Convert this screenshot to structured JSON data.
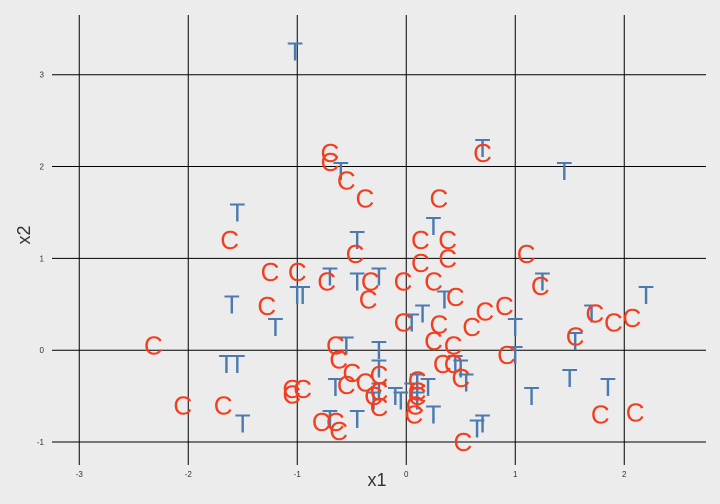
{
  "chart_data": {
    "type": "scatter",
    "title": "",
    "xlabel": "x1",
    "ylabel": "x2",
    "xlim": [
      -3.25,
      2.75
    ],
    "ylim": [
      -1.25,
      3.65
    ],
    "xticks": [
      -3,
      -2,
      -1,
      0,
      1,
      2
    ],
    "yticks": [
      -1,
      0,
      1,
      2,
      3
    ],
    "xtick_labels": [
      "-3",
      "-2",
      "-1",
      "0",
      "1",
      "2"
    ],
    "ytick_labels": [
      "-1",
      "0",
      "1",
      "2",
      "3"
    ],
    "grid": true,
    "colors": {
      "T": "#4a7ab0",
      "C": "#f23d1f",
      "background": "#ececec",
      "grid": "#000000"
    },
    "series": [
      {
        "name": "T",
        "points": [
          [
            -1.02,
            3.25
          ],
          [
            0.7,
            2.2
          ],
          [
            1.45,
            1.95
          ],
          [
            -0.6,
            1.95
          ],
          [
            -1.55,
            1.5
          ],
          [
            0.25,
            1.35
          ],
          [
            -0.45,
            1.2
          ],
          [
            -1.6,
            0.5
          ],
          [
            -1.0,
            0.6
          ],
          [
            -0.7,
            0.8
          ],
          [
            -0.25,
            0.8
          ],
          [
            -0.45,
            0.75
          ],
          [
            0.35,
            0.55
          ],
          [
            -0.95,
            0.6
          ],
          [
            2.2,
            0.6
          ],
          [
            0.05,
            0.3
          ],
          [
            1.25,
            0.75
          ],
          [
            0.15,
            0.4
          ],
          [
            -1.2,
            0.25
          ],
          [
            1.7,
            0.4
          ],
          [
            1.0,
            0.25
          ],
          [
            -0.55,
            0.05
          ],
          [
            -0.25,
            0.0
          ],
          [
            1.55,
            0.1
          ],
          [
            -1.65,
            -0.15
          ],
          [
            -1.55,
            -0.15
          ],
          [
            -0.25,
            -0.2
          ],
          [
            1.0,
            -0.05
          ],
          [
            0.45,
            -0.15
          ],
          [
            0.5,
            -0.2
          ],
          [
            1.5,
            -0.3
          ],
          [
            -0.65,
            -0.4
          ],
          [
            -0.25,
            -0.45
          ],
          [
            0.1,
            -0.35
          ],
          [
            0.55,
            -0.35
          ],
          [
            1.85,
            -0.4
          ],
          [
            -0.1,
            -0.5
          ],
          [
            0.2,
            -0.4
          ],
          [
            1.15,
            -0.5
          ],
          [
            0.1,
            -0.55
          ],
          [
            -0.05,
            -0.55
          ],
          [
            -0.7,
            -0.75
          ],
          [
            -0.45,
            -0.75
          ],
          [
            0.25,
            -0.7
          ],
          [
            0.7,
            -0.8
          ],
          [
            -1.5,
            -0.8
          ],
          [
            0.65,
            -0.85
          ],
          [
            0.05,
            -0.45
          ],
          [
            -0.3,
            -0.55
          ]
        ]
      },
      {
        "name": "C",
        "points": [
          [
            -0.7,
            2.15
          ],
          [
            -0.7,
            2.05
          ],
          [
            0.7,
            2.15
          ],
          [
            -0.55,
            1.85
          ],
          [
            -0.38,
            1.65
          ],
          [
            0.3,
            1.65
          ],
          [
            -1.62,
            1.2
          ],
          [
            0.13,
            1.2
          ],
          [
            0.38,
            1.2
          ],
          [
            -0.47,
            1.05
          ],
          [
            1.1,
            1.05
          ],
          [
            0.38,
            1.0
          ],
          [
            0.13,
            0.95
          ],
          [
            -1.25,
            0.85
          ],
          [
            -1.0,
            0.85
          ],
          [
            -0.73,
            0.75
          ],
          [
            -0.33,
            0.75
          ],
          [
            -0.03,
            0.75
          ],
          [
            0.25,
            0.75
          ],
          [
            1.23,
            0.7
          ],
          [
            0.45,
            0.58
          ],
          [
            -0.35,
            0.55
          ],
          [
            -1.28,
            0.48
          ],
          [
            0.9,
            0.48
          ],
          [
            0.72,
            0.42
          ],
          [
            1.73,
            0.4
          ],
          [
            -0.03,
            0.3
          ],
          [
            0.3,
            0.28
          ],
          [
            0.6,
            0.25
          ],
          [
            1.9,
            0.3
          ],
          [
            2.07,
            0.35
          ],
          [
            1.55,
            0.15
          ],
          [
            -2.32,
            0.05
          ],
          [
            0.25,
            0.1
          ],
          [
            -0.65,
            0.05
          ],
          [
            0.43,
            0.05
          ],
          [
            -0.62,
            -0.1
          ],
          [
            0.92,
            -0.05
          ],
          [
            0.33,
            -0.15
          ],
          [
            0.43,
            -0.15
          ],
          [
            -0.5,
            -0.25
          ],
          [
            -0.25,
            -0.27
          ],
          [
            -0.38,
            -0.35
          ],
          [
            0.1,
            -0.33
          ],
          [
            0.5,
            -0.3
          ],
          [
            -0.55,
            -0.38
          ],
          [
            -1.05,
            -0.42
          ],
          [
            -0.95,
            -0.42
          ],
          [
            -1.05,
            -0.48
          ],
          [
            -0.25,
            -0.45
          ],
          [
            -0.3,
            -0.5
          ],
          [
            0.1,
            -0.45
          ],
          [
            0.1,
            -0.5
          ],
          [
            -2.05,
            -0.6
          ],
          [
            -1.68,
            -0.6
          ],
          [
            -0.25,
            -0.62
          ],
          [
            0.08,
            -0.6
          ],
          [
            0.07,
            -0.7
          ],
          [
            1.78,
            -0.7
          ],
          [
            2.1,
            -0.68
          ],
          [
            -0.78,
            -0.78
          ],
          [
            -0.65,
            -0.78
          ],
          [
            -0.62,
            -0.88
          ],
          [
            0.52,
            -1.0
          ]
        ]
      }
    ]
  }
}
